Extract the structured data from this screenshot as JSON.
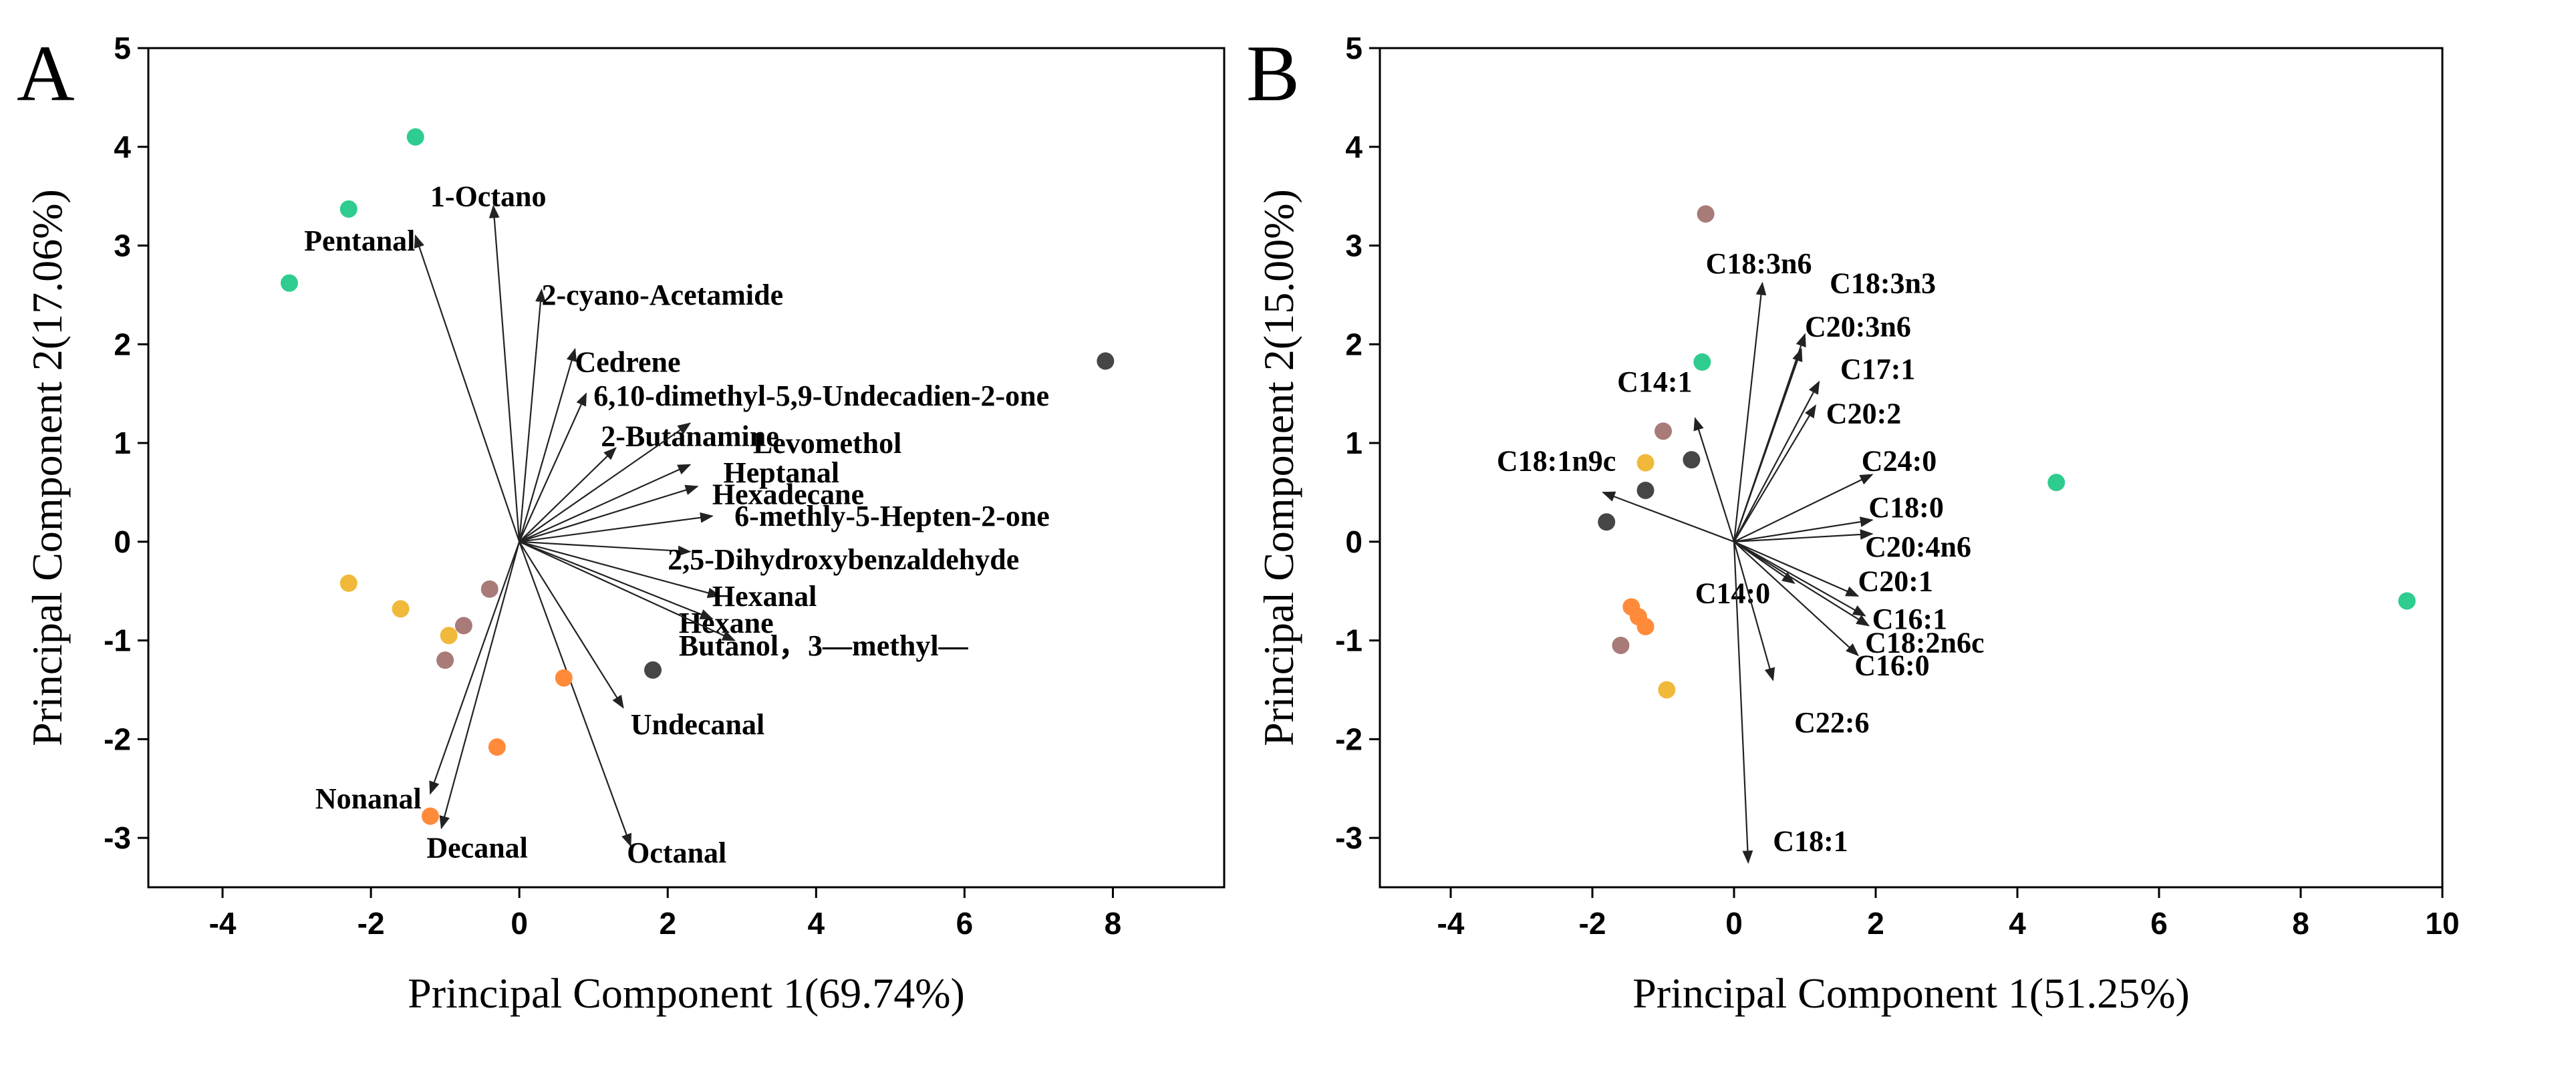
{
  "chart_data": [
    {
      "type": "scatter",
      "panel": "A",
      "title": "",
      "xlabel": "Principal Component 1(69.74%)",
      "ylabel": "Principal Component 2(17.06%)",
      "xlim": [
        -5,
        9.5
      ],
      "ylim": [
        -3.5,
        5
      ],
      "xticks": [
        -4,
        -2,
        0,
        2,
        4,
        6,
        8
      ],
      "yticks": [
        -3,
        -2,
        -1,
        0,
        1,
        2,
        3,
        4,
        5
      ],
      "grid": false,
      "colors": {
        "green": "#2ecc8f",
        "yellow": "#f0b93a",
        "mauve": "#a87b78",
        "orange": "#ff8a3a",
        "dark": "#464646"
      },
      "points": [
        {
          "x": -1.4,
          "y": 4.1,
          "color": "green"
        },
        {
          "x": -2.3,
          "y": 3.37,
          "color": "green"
        },
        {
          "x": -3.1,
          "y": 2.62,
          "color": "green"
        },
        {
          "x": 7.9,
          "y": 1.83,
          "color": "dark"
        },
        {
          "x": 1.8,
          "y": -1.3,
          "color": "dark"
        },
        {
          "x": -2.3,
          "y": -0.42,
          "color": "yellow"
        },
        {
          "x": -1.6,
          "y": -0.68,
          "color": "yellow"
        },
        {
          "x": -0.95,
          "y": -0.95,
          "color": "yellow"
        },
        {
          "x": -0.4,
          "y": -0.48,
          "color": "mauve"
        },
        {
          "x": -0.75,
          "y": -0.85,
          "color": "mauve"
        },
        {
          "x": -1.0,
          "y": -1.2,
          "color": "mauve"
        },
        {
          "x": 0.6,
          "y": -1.38,
          "color": "orange"
        },
        {
          "x": -0.3,
          "y": -2.08,
          "color": "orange"
        },
        {
          "x": -1.2,
          "y": -2.78,
          "color": "orange"
        }
      ],
      "loadings": [
        {
          "label": "1-Octano",
          "x": -0.35,
          "y": 3.4,
          "lx": -1.2,
          "ly": 3.4
        },
        {
          "label": "Pentanal",
          "x": -1.4,
          "y": 3.1,
          "lx": -2.9,
          "ly": 2.95
        },
        {
          "label": "2-cyano-Acetamide",
          "x": 0.3,
          "y": 2.55,
          "lx": 0.3,
          "ly": 2.4
        },
        {
          "label": "Cedrene",
          "x": 0.75,
          "y": 1.95,
          "lx": 0.75,
          "ly": 1.72
        },
        {
          "label": "6,10-dimethyl-5,9-Undecadien-2-one",
          "x": 0.9,
          "y": 1.5,
          "lx": 1.0,
          "ly": 1.38
        },
        {
          "label": "2-Butanamine",
          "x": 1.3,
          "y": 0.95,
          "lx": 1.1,
          "ly": 0.97
        },
        {
          "label": "Levomethol",
          "x": 2.3,
          "y": 1.2,
          "lx": 3.15,
          "ly": 0.9
        },
        {
          "label": "Heptanal",
          "x": 2.3,
          "y": 0.78,
          "lx": 2.75,
          "ly": 0.6
        },
        {
          "label": "Hexadecane",
          "x": 2.4,
          "y": 0.56,
          "lx": 2.6,
          "ly": 0.38
        },
        {
          "label": "6-methly-5-Hepten-2-one",
          "x": 2.6,
          "y": 0.26,
          "lx": 2.9,
          "ly": 0.16
        },
        {
          "label": "2,5-Dihydroxybenzaldehyde",
          "x": 2.3,
          "y": -0.1,
          "lx": 2.0,
          "ly": -0.28
        },
        {
          "label": "Hexanal",
          "x": 2.7,
          "y": -0.55,
          "lx": 2.6,
          "ly": -0.65
        },
        {
          "label": "Hexane",
          "x": 2.6,
          "y": -0.78,
          "lx": 2.15,
          "ly": -0.92
        },
        {
          "label": "Butanol，3—methyl—",
          "x": 2.9,
          "y": -1.0,
          "lx": 2.15,
          "ly": -1.15
        },
        {
          "label": "Undecanal",
          "x": 1.4,
          "y": -1.68,
          "lx": 1.5,
          "ly": -1.95
        },
        {
          "label": "Nonanal",
          "x": -1.2,
          "y": -2.55,
          "lx": -2.75,
          "ly": -2.7
        },
        {
          "label": "Decanal",
          "x": -1.05,
          "y": -2.9,
          "lx": -1.25,
          "ly": -3.2
        },
        {
          "label": "Octanal",
          "x": 1.5,
          "y": -3.08,
          "lx": 1.45,
          "ly": -3.25
        }
      ]
    },
    {
      "type": "scatter",
      "panel": "B",
      "title": "",
      "xlabel": "Principal Component 1(51.25%)",
      "ylabel": "Principal Component 2(15.00%)",
      "xlim": [
        -5,
        10
      ],
      "ylim": [
        -3.5,
        5
      ],
      "xticks": [
        -4,
        -2,
        0,
        2,
        4,
        6,
        8,
        10
      ],
      "yticks": [
        -3,
        -2,
        -1,
        0,
        1,
        2,
        3,
        4,
        5
      ],
      "grid": false,
      "colors": {
        "green": "#2ecc8f",
        "yellow": "#f0b93a",
        "mauve": "#a87b78",
        "orange": "#ff8a3a",
        "dark": "#464646"
      },
      "points": [
        {
          "x": -0.4,
          "y": 3.32,
          "color": "mauve"
        },
        {
          "x": -0.45,
          "y": 1.82,
          "color": "green"
        },
        {
          "x": 4.55,
          "y": 0.6,
          "color": "green"
        },
        {
          "x": 9.5,
          "y": -0.6,
          "color": "green"
        },
        {
          "x": -1.0,
          "y": 1.12,
          "color": "mauve"
        },
        {
          "x": -1.25,
          "y": 0.8,
          "color": "yellow"
        },
        {
          "x": -0.6,
          "y": 0.83,
          "color": "dark"
        },
        {
          "x": -1.25,
          "y": 0.52,
          "color": "dark"
        },
        {
          "x": -1.8,
          "y": 0.2,
          "color": "dark"
        },
        {
          "x": -1.45,
          "y": -0.66,
          "color": "orange"
        },
        {
          "x": -1.35,
          "y": -0.76,
          "color": "orange"
        },
        {
          "x": -1.25,
          "y": -0.86,
          "color": "orange"
        },
        {
          "x": -1.6,
          "y": -1.05,
          "color": "mauve"
        },
        {
          "x": -0.95,
          "y": -1.5,
          "color": "yellow"
        }
      ],
      "loadings": [
        {
          "label": "C18:3n6",
          "x": 0.4,
          "y": 2.62,
          "lx": -0.4,
          "ly": 2.72
        },
        {
          "label": "C18:3n3",
          "x": 1.0,
          "y": 2.1,
          "lx": 1.35,
          "ly": 2.52
        },
        {
          "label": "C20:3n6",
          "x": 0.95,
          "y": 1.95,
          "lx": 1.0,
          "ly": 2.08
        },
        {
          "label": "C17:1",
          "x": 1.2,
          "y": 1.62,
          "lx": 1.5,
          "ly": 1.65
        },
        {
          "label": "C20:2",
          "x": 1.15,
          "y": 1.38,
          "lx": 1.3,
          "ly": 1.2
        },
        {
          "label": "C14:1",
          "x": -0.55,
          "y": 1.25,
          "lx": -1.65,
          "ly": 1.52
        },
        {
          "label": "C18:1n9c",
          "x": -1.85,
          "y": 0.5,
          "lx": -3.35,
          "ly": 0.72
        },
        {
          "label": "C24:0",
          "x": 1.95,
          "y": 0.68,
          "lx": 1.8,
          "ly": 0.72
        },
        {
          "label": "C18:0",
          "x": 1.95,
          "y": 0.22,
          "lx": 1.9,
          "ly": 0.25
        },
        {
          "label": "C20:4n6",
          "x": 1.95,
          "y": 0.08,
          "lx": 1.85,
          "ly": -0.15
        },
        {
          "label": "C14:0",
          "x": 0.85,
          "y": -0.42,
          "lx": -0.55,
          "ly": -0.62
        },
        {
          "label": "C20:1",
          "x": 1.75,
          "y": -0.55,
          "lx": 1.75,
          "ly": -0.5
        },
        {
          "label": "C16:1",
          "x": 1.85,
          "y": -0.75,
          "lx": 1.95,
          "ly": -0.88
        },
        {
          "label": "C18:2n6c",
          "x": 1.9,
          "y": -0.85,
          "lx": 1.85,
          "ly": -1.12
        },
        {
          "label": "C16:0",
          "x": 1.75,
          "y": -1.15,
          "lx": 1.7,
          "ly": -1.35
        },
        {
          "label": "C22:6",
          "x": 0.55,
          "y": -1.4,
          "lx": 0.85,
          "ly": -1.93
        },
        {
          "label": "C18:1",
          "x": 0.2,
          "y": -3.25,
          "lx": 0.55,
          "ly": -3.13
        }
      ]
    }
  ]
}
